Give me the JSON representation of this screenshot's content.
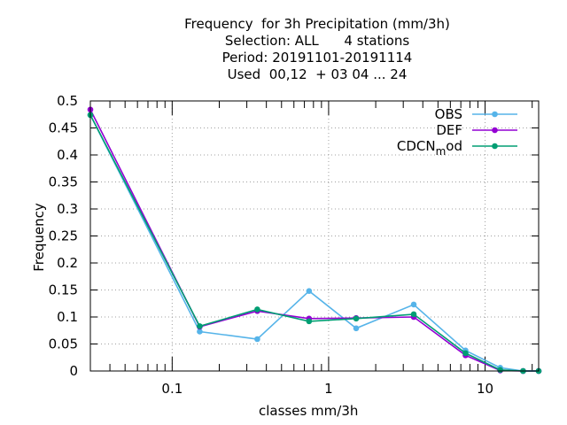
{
  "chart_data": {
    "type": "line",
    "title_lines": [
      "Frequency  for 3h Precipitation (mm/3h)",
      "Selection: ALL      4 stations",
      "Period: 20191101-20191114",
      "Used  00,12  + 03 04 ... 24"
    ],
    "xlabel": "classes mm/3h",
    "ylabel": "Frequency",
    "x_scale": "log",
    "xlim": [
      0.03,
      22
    ],
    "ylim": [
      0,
      0.5
    ],
    "yticks": [
      "0",
      "0.05",
      "0.1",
      "0.15",
      "0.2",
      "0.25",
      "0.3",
      "0.35",
      "0.4",
      "0.45",
      "0.5"
    ],
    "xticks": [
      {
        "value": 0.1,
        "label": "0.1"
      },
      {
        "value": 1,
        "label": "1"
      },
      {
        "value": 10,
        "label": "10"
      }
    ],
    "grid": true,
    "legend_position": "top-right",
    "x": [
      0.03,
      0.15,
      0.35,
      0.75,
      1.5,
      3.5,
      7.5,
      12.5,
      17.5,
      22
    ],
    "series": [
      {
        "name": "OBS",
        "color": "#56b4e9",
        "values": [
          0.474,
          0.073,
          0.059,
          0.148,
          0.079,
          0.123,
          0.038,
          0.006,
          0.0,
          0.0
        ]
      },
      {
        "name": "DEF",
        "color": "#9400d3",
        "values": [
          0.484,
          0.082,
          0.111,
          0.097,
          0.098,
          0.1,
          0.029,
          0.001,
          0.0,
          0.0
        ]
      },
      {
        "name": "CDCNmod",
        "color": "#009e73",
        "values": [
          0.474,
          0.083,
          0.114,
          0.092,
          0.097,
          0.105,
          0.033,
          0.002,
          0.0,
          0.0
        ]
      }
    ],
    "legend": [
      {
        "label": "OBS",
        "base": "OBS",
        "sub": ""
      },
      {
        "label": "DEF",
        "base": "DEF",
        "sub": ""
      },
      {
        "label": "CDCNmod",
        "base": "CDCN",
        "sub": "m",
        "tail": "od"
      }
    ]
  }
}
